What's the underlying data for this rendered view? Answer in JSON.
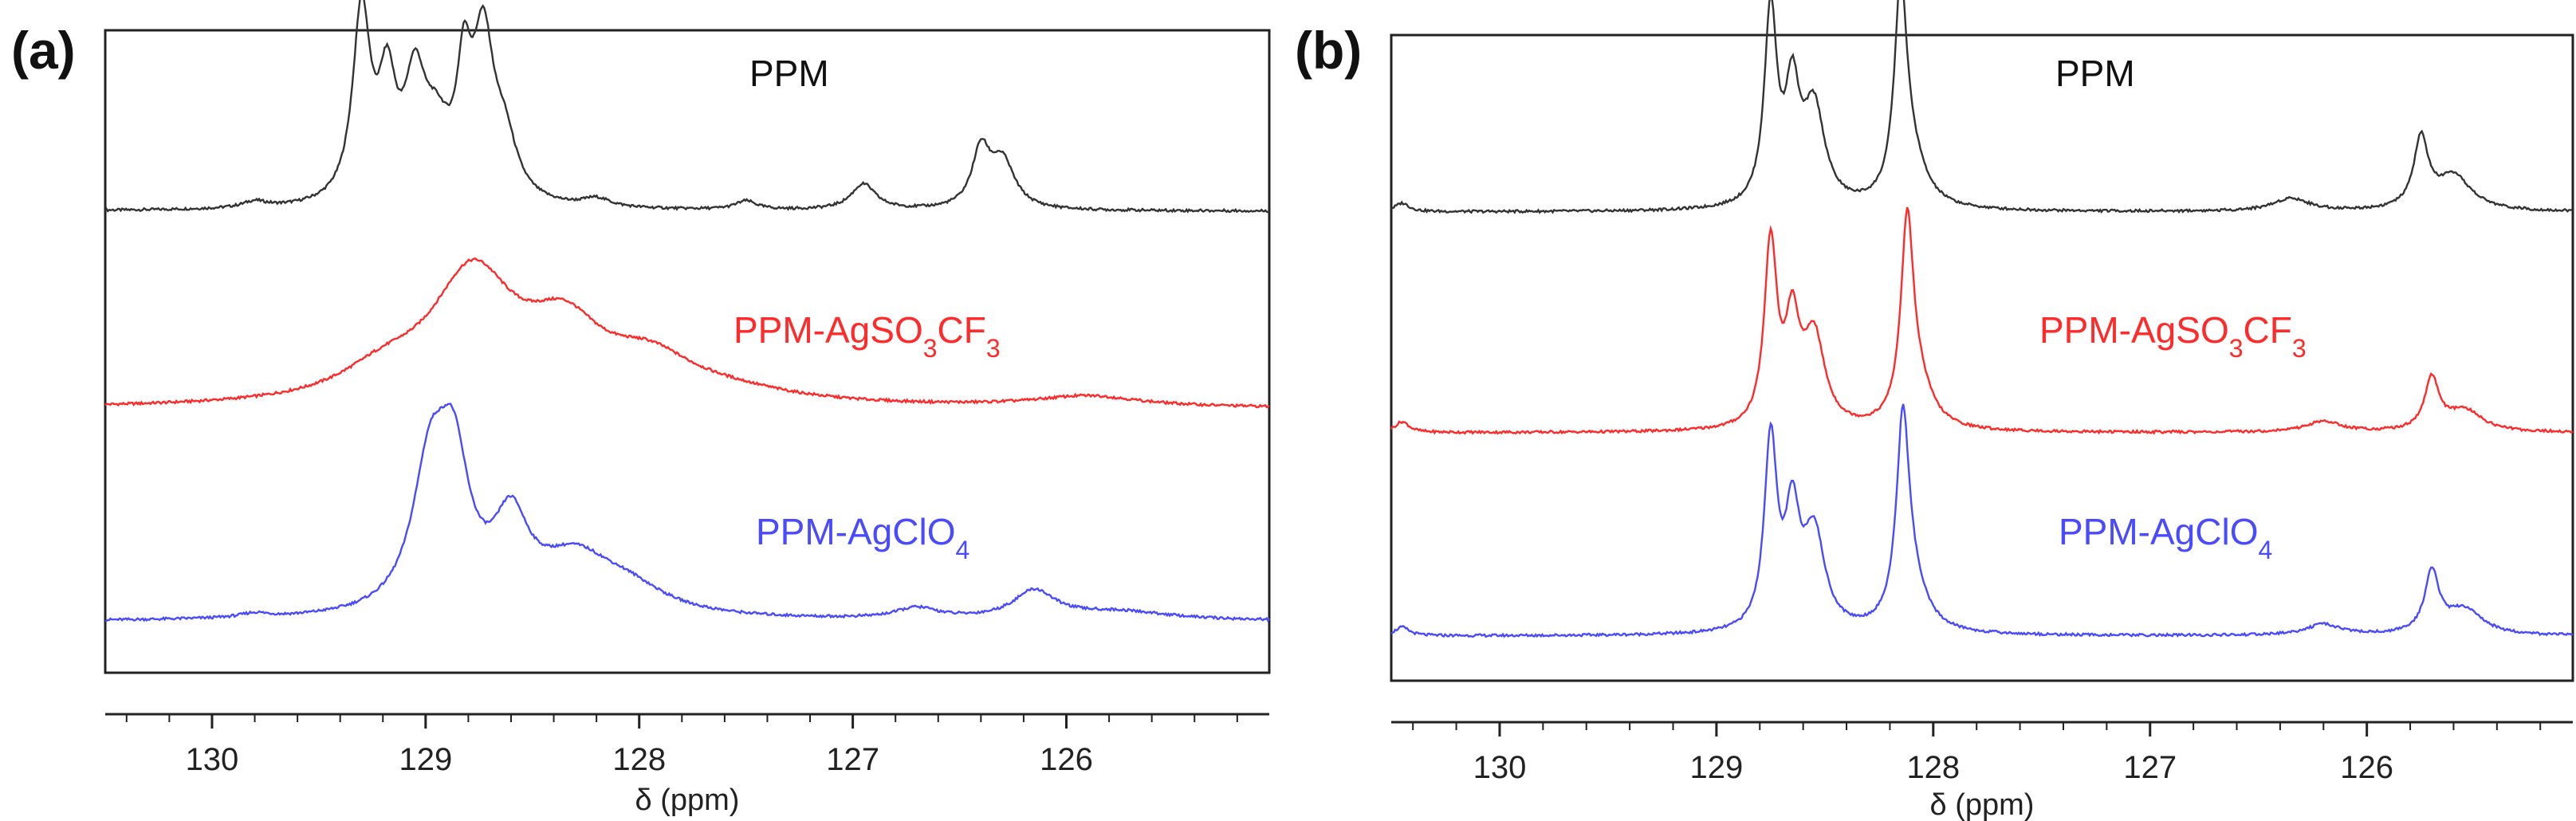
{
  "colors": {
    "ppm": "#333333",
    "agso3cf3": "#ff2a2a",
    "agclo4": "#4a4aff",
    "frame": "#222222"
  },
  "chart_data": [
    {
      "panel_label": "(a)",
      "type": "line",
      "title": "",
      "xlabel": "δ (ppm)",
      "xlim": [
        130.5,
        125.05
      ],
      "xticks": [
        {
          "value": 130,
          "label": "130"
        },
        {
          "value": 129,
          "label": "129"
        },
        {
          "value": 128,
          "label": "128"
        },
        {
          "value": 127,
          "label": "127"
        },
        {
          "value": 126,
          "label": "126"
        }
      ],
      "series": [
        {
          "name": "PPM",
          "label_text": "PPM",
          "label_sub": "",
          "label_tail": "",
          "color_key": "ppm",
          "offset": 0.78,
          "peaks": [
            {
              "c": 129.3,
              "w": 0.05,
              "h": 0.88
            },
            {
              "c": 129.18,
              "w": 0.05,
              "h": 0.5
            },
            {
              "c": 129.05,
              "w": 0.06,
              "h": 0.5
            },
            {
              "c": 128.95,
              "w": 0.08,
              "h": 0.28
            },
            {
              "c": 128.82,
              "w": 0.04,
              "h": 0.5
            },
            {
              "c": 128.73,
              "w": 0.06,
              "h": 0.72
            },
            {
              "c": 128.63,
              "w": 0.07,
              "h": 0.25
            },
            {
              "c": 128.2,
              "w": 0.08,
              "h": 0.04
            },
            {
              "c": 127.5,
              "w": 0.06,
              "h": 0.04
            },
            {
              "c": 126.95,
              "w": 0.07,
              "h": 0.12
            },
            {
              "c": 126.4,
              "w": 0.05,
              "h": 0.26
            },
            {
              "c": 126.3,
              "w": 0.07,
              "h": 0.22
            },
            {
              "c": 129.8,
              "w": 0.07,
              "h": 0.03
            }
          ]
        },
        {
          "name": "PPM-AgSO3CF3",
          "label_text": "PPM-AgSO",
          "label_sub": "3",
          "label_tail": "CF",
          "label_sub2": "3",
          "color_key": "agso3cf3",
          "offset": 0.42,
          "peaks": [
            {
              "c": 128.78,
              "w": 0.24,
              "h": 0.58
            },
            {
              "c": 128.35,
              "w": 0.22,
              "h": 0.3
            },
            {
              "c": 127.95,
              "w": 0.25,
              "h": 0.17
            },
            {
              "c": 127.6,
              "w": 0.4,
              "h": 0.05
            },
            {
              "c": 125.9,
              "w": 0.3,
              "h": 0.05
            },
            {
              "c": 129.2,
              "w": 0.25,
              "h": 0.12
            }
          ]
        },
        {
          "name": "PPM-AgClO4",
          "label_text": "PPM-AgClO",
          "label_sub": "4",
          "label_tail": "",
          "color_key": "agclo4",
          "offset": 0.06,
          "peaks": [
            {
              "c": 128.98,
              "w": 0.1,
              "h": 0.62
            },
            {
              "c": 128.87,
              "w": 0.09,
              "h": 0.62
            },
            {
              "c": 128.6,
              "w": 0.1,
              "h": 0.38
            },
            {
              "c": 128.3,
              "w": 0.22,
              "h": 0.25
            },
            {
              "c": 128.05,
              "w": 0.22,
              "h": 0.1
            },
            {
              "c": 126.7,
              "w": 0.12,
              "h": 0.05
            },
            {
              "c": 126.15,
              "w": 0.12,
              "h": 0.13
            },
            {
              "c": 125.75,
              "w": 0.3,
              "h": 0.04
            },
            {
              "c": 129.8,
              "w": 0.08,
              "h": 0.02
            }
          ]
        }
      ]
    },
    {
      "panel_label": "(b)",
      "type": "line",
      "title": "",
      "xlabel": "δ (ppm)",
      "xlim": [
        130.5,
        125.05
      ],
      "xticks": [
        {
          "value": 130,
          "label": "130"
        },
        {
          "value": 129,
          "label": "129"
        },
        {
          "value": 128,
          "label": "128"
        },
        {
          "value": 127,
          "label": "127"
        },
        {
          "value": 126,
          "label": "126"
        }
      ],
      "series": [
        {
          "name": "PPM",
          "label_text": "PPM",
          "label_sub": "",
          "label_tail": "",
          "color_key": "ppm",
          "offset": 0.74,
          "peaks": [
            {
              "c": 128.75,
              "w": 0.035,
              "h": 0.9
            },
            {
              "c": 128.65,
              "w": 0.04,
              "h": 0.5
            },
            {
              "c": 128.55,
              "w": 0.06,
              "h": 0.45
            },
            {
              "c": 128.15,
              "w": 0.035,
              "h": 0.95
            },
            {
              "c": 128.1,
              "w": 0.08,
              "h": 0.2
            },
            {
              "c": 126.35,
              "w": 0.1,
              "h": 0.06
            },
            {
              "c": 125.75,
              "w": 0.04,
              "h": 0.32
            },
            {
              "c": 125.6,
              "w": 0.1,
              "h": 0.16
            },
            {
              "c": 130.45,
              "w": 0.04,
              "h": 0.04
            }
          ]
        },
        {
          "name": "PPM-AgSO3CF3",
          "label_text": "PPM-AgSO",
          "label_sub": "3",
          "label_tail": "CF",
          "label_sub2": "3",
          "color_key": "agso3cf3",
          "offset": 0.4,
          "peaks": [
            {
              "c": 128.75,
              "w": 0.035,
              "h": 0.85
            },
            {
              "c": 128.65,
              "w": 0.04,
              "h": 0.45
            },
            {
              "c": 128.55,
              "w": 0.06,
              "h": 0.42
            },
            {
              "c": 128.12,
              "w": 0.035,
              "h": 0.9
            },
            {
              "c": 128.07,
              "w": 0.08,
              "h": 0.18
            },
            {
              "c": 126.2,
              "w": 0.1,
              "h": 0.05
            },
            {
              "c": 125.7,
              "w": 0.04,
              "h": 0.24
            },
            {
              "c": 125.55,
              "w": 0.1,
              "h": 0.1
            },
            {
              "c": 130.45,
              "w": 0.04,
              "h": 0.05
            }
          ]
        },
        {
          "name": "PPM-AgClO4",
          "label_text": "PPM-AgClO",
          "label_sub": "4",
          "label_tail": "",
          "color_key": "agclo4",
          "offset": 0.03,
          "peaks": [
            {
              "c": 128.75,
              "w": 0.035,
              "h": 0.88
            },
            {
              "c": 128.65,
              "w": 0.04,
              "h": 0.5
            },
            {
              "c": 128.55,
              "w": 0.06,
              "h": 0.45
            },
            {
              "c": 128.14,
              "w": 0.035,
              "h": 0.9
            },
            {
              "c": 128.1,
              "w": 0.08,
              "h": 0.2
            },
            {
              "c": 126.2,
              "w": 0.1,
              "h": 0.05
            },
            {
              "c": 125.7,
              "w": 0.04,
              "h": 0.28
            },
            {
              "c": 125.55,
              "w": 0.1,
              "h": 0.12
            },
            {
              "c": 130.45,
              "w": 0.04,
              "h": 0.04
            }
          ]
        }
      ]
    }
  ]
}
